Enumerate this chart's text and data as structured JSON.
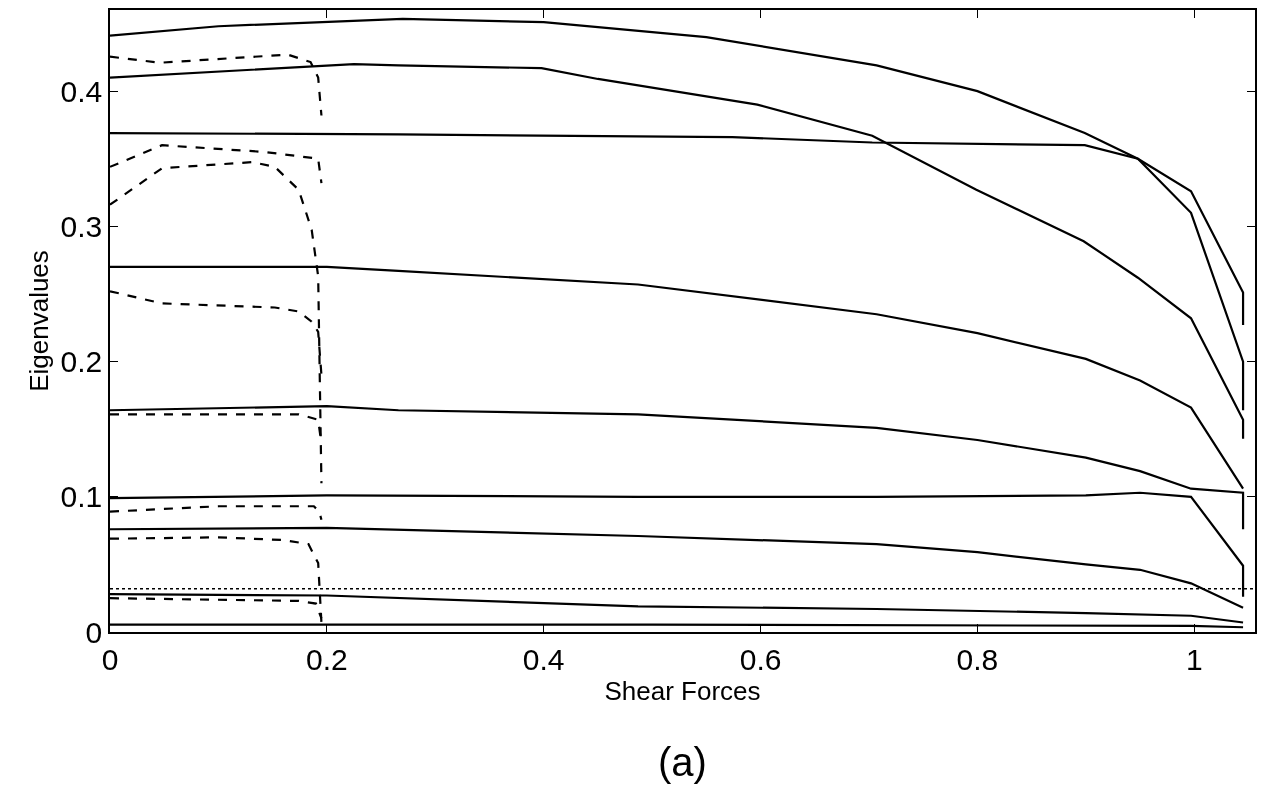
{
  "chart_data": {
    "type": "line",
    "xlabel": "Shear Forces",
    "ylabel": "Eigenvalues",
    "annotations": [
      "(a)"
    ],
    "xlim": [
      0,
      1.056
    ],
    "ylim": [
      0,
      0.46
    ],
    "xticks": [
      0,
      0.2,
      0.4,
      0.6,
      0.8,
      1
    ],
    "yticks": [
      0,
      0.1,
      0.2,
      0.3,
      0.4
    ],
    "marker": "none",
    "ref_lines": [
      {
        "axis": "y",
        "value": 0.032,
        "line_style": "dotted",
        "color": "#000000"
      }
    ],
    "series": [
      {
        "color": "#000000",
        "line_style": "solid",
        "x": [
          0,
          0.1,
          0.27,
          0.4,
          0.55,
          0.707,
          0.8,
          0.899,
          0.948,
          0.997,
          1.045,
          1.045
        ],
        "values": [
          0.441,
          0.448,
          0.4535,
          0.451,
          0.44,
          0.419,
          0.4,
          0.369,
          0.35,
          0.326,
          0.251,
          0.227
        ]
      },
      {
        "color": "#000000",
        "line_style": "solid",
        "x": [
          0,
          0.225,
          0.266,
          0.398,
          0.45,
          0.597,
          0.703,
          0.799,
          0.898,
          0.948,
          0.997,
          1.045,
          1.045
        ],
        "values": [
          0.41,
          0.42,
          0.419,
          0.417,
          0.409,
          0.39,
          0.367,
          0.327,
          0.289,
          0.262,
          0.232,
          0.157,
          0.143
        ]
      },
      {
        "color": "#000000",
        "line_style": "solid",
        "x": [
          0,
          0.266,
          0.574,
          0.703,
          0.899,
          0.948,
          0.997,
          1.045,
          1.045
        ],
        "values": [
          0.369,
          0.368,
          0.366,
          0.362,
          0.36,
          0.35,
          0.31,
          0.2,
          0.164
        ]
      },
      {
        "color": "#000000",
        "line_style": "solid",
        "x": [
          0,
          0.2,
          0.266,
          0.487,
          0.707,
          0.8,
          0.9,
          0.95,
          0.997,
          1.045
        ],
        "values": [
          0.27,
          0.27,
          0.267,
          0.257,
          0.235,
          0.221,
          0.202,
          0.186,
          0.166,
          0.106
        ]
      },
      {
        "color": "#000000",
        "line_style": "solid",
        "x": [
          0,
          0.2,
          0.266,
          0.487,
          0.707,
          0.8,
          0.9,
          0.95,
          0.997,
          1.045,
          1.045
        ],
        "values": [
          0.164,
          0.167,
          0.164,
          0.161,
          0.151,
          0.142,
          0.129,
          0.119,
          0.106,
          0.103,
          0.076
        ]
      },
      {
        "color": "#000000",
        "line_style": "solid",
        "x": [
          0,
          0.2,
          0.487,
          0.707,
          0.9,
          0.95,
          0.997,
          1.045,
          1.045
        ],
        "values": [
          0.099,
          0.101,
          0.1,
          0.1,
          0.101,
          0.103,
          0.1,
          0.049,
          0.026
        ]
      },
      {
        "color": "#000000",
        "line_style": "solid",
        "x": [
          0,
          0.2,
          0.487,
          0.707,
          0.8,
          0.9,
          0.95,
          0.997,
          1.045
        ],
        "values": [
          0.076,
          0.077,
          0.071,
          0.065,
          0.059,
          0.05,
          0.046,
          0.036,
          0.018
        ]
      },
      {
        "color": "#000000",
        "line_style": "solid",
        "x": [
          0,
          0.2,
          0.487,
          0.707,
          0.9,
          0.997,
          1.045
        ],
        "values": [
          0.028,
          0.027,
          0.019,
          0.017,
          0.014,
          0.012,
          0.007
        ]
      },
      {
        "color": "#000000",
        "line_style": "solid",
        "x": [
          0,
          0.5,
          0.997,
          1.045
        ],
        "values": [
          0.0055,
          0.0055,
          0.0045,
          0.0035
        ]
      },
      {
        "color": "#000000",
        "line_style": "dashed",
        "x": [
          0,
          0.046,
          0.164,
          0.185,
          0.192,
          0.195
        ],
        "values": [
          0.4255,
          0.421,
          0.427,
          0.4215,
          0.41,
          0.382
        ]
      },
      {
        "color": "#000000",
        "line_style": "dashed",
        "x": [
          0,
          0.048,
          0.143,
          0.192,
          0.195
        ],
        "values": [
          0.344,
          0.36,
          0.355,
          0.35,
          0.332
        ]
      },
      {
        "color": "#000000",
        "line_style": "dashed",
        "x": [
          0,
          0.048,
          0.131,
          0.152,
          0.174,
          0.186,
          0.192,
          0.195
        ],
        "values": [
          0.316,
          0.343,
          0.3475,
          0.344,
          0.327,
          0.2975,
          0.263,
          0.11
        ]
      },
      {
        "color": "#000000",
        "line_style": "dashed",
        "x": [
          0,
          0.048,
          0.152,
          0.174,
          0.186,
          0.192,
          0.195
        ],
        "values": [
          0.252,
          0.243,
          0.24,
          0.237,
          0.2295,
          0.222,
          0.19
        ]
      },
      {
        "color": "#000000",
        "line_style": "dashed",
        "x": [
          0,
          0.174,
          0.192,
          0.195
        ],
        "values": [
          0.161,
          0.161,
          0.157,
          0.139
        ]
      },
      {
        "color": "#000000",
        "line_style": "dashed",
        "x": [
          0,
          0.1,
          0.188,
          0.193,
          0.195
        ],
        "values": [
          0.089,
          0.093,
          0.093,
          0.089,
          0.083
        ]
      },
      {
        "color": "#000000",
        "line_style": "dashed",
        "x": [
          0,
          0.1,
          0.16,
          0.183,
          0.192,
          0.195
        ],
        "values": [
          0.069,
          0.07,
          0.068,
          0.065,
          0.051,
          0.007
        ]
      },
      {
        "color": "#000000",
        "line_style": "dashed",
        "x": [
          0,
          0.174,
          0.19,
          0.195
        ],
        "values": [
          0.025,
          0.023,
          0.021,
          0.01
        ]
      }
    ]
  }
}
